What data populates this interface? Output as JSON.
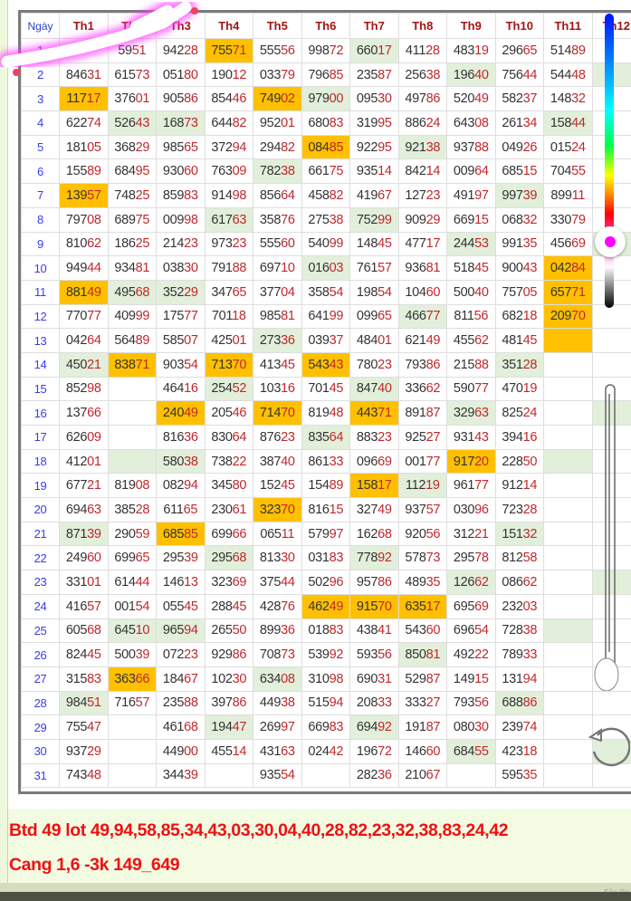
{
  "table": {
    "headers": [
      "Ngày",
      "Th1",
      "Th2",
      "Th3",
      "Th4",
      "Th5",
      "Th6",
      "Th7",
      "Th8",
      "Th9",
      "Th10",
      "Th11",
      "Th12"
    ],
    "highlight_colors": {
      "o": "#ffc000",
      "g": "#e2efda"
    },
    "rows": [
      {
        "day": "1",
        "cells": [
          "",
          "5951",
          "94228",
          "75571",
          "55556",
          "99872",
          "66017",
          "41128",
          "48319",
          "29665",
          "51489",
          ""
        ],
        "hl": "...o..g....."
      },
      {
        "day": "2",
        "cells": [
          "84631",
          "61573",
          "05180",
          "19012",
          "03379",
          "79685",
          "23587",
          "25638",
          "19640",
          "75644",
          "54448",
          ""
        ],
        "hl": "........g..g"
      },
      {
        "day": "3",
        "cells": [
          "11717",
          "37601",
          "90586",
          "85446",
          "74902",
          "97900",
          "09530",
          "49786",
          "52049",
          "58237",
          "14832",
          ""
        ],
        "hl": "o...og......"
      },
      {
        "day": "4",
        "cells": [
          "62274",
          "52643",
          "16873",
          "64482",
          "95201",
          "68083",
          "31995",
          "88624",
          "64308",
          "26134",
          "15844",
          ""
        ],
        "hl": ".gg.......g."
      },
      {
        "day": "5",
        "cells": [
          "18105",
          "36829",
          "98565",
          "37294",
          "29482",
          "08485",
          "92295",
          "92138",
          "93788",
          "04926",
          "01524",
          ""
        ],
        "hl": ".....o.g...."
      },
      {
        "day": "6",
        "cells": [
          "15589",
          "68495",
          "93060",
          "76309",
          "78238",
          "66175",
          "93514",
          "84214",
          "00964",
          "68515",
          "70455",
          ""
        ],
        "hl": "....g......."
      },
      {
        "day": "7",
        "cells": [
          "13957",
          "74825",
          "85983",
          "91498",
          "85664",
          "45882",
          "41967",
          "12723",
          "49197",
          "99739",
          "89911",
          ""
        ],
        "hl": "o........g.."
      },
      {
        "day": "8",
        "cells": [
          "79708",
          "68975",
          "00998",
          "61763",
          "35876",
          "27538",
          "75299",
          "90929",
          "66915",
          "06832",
          "33079",
          ""
        ],
        "hl": "...g..g....."
      },
      {
        "day": "9",
        "cells": [
          "81062",
          "18625",
          "21423",
          "97323",
          "55560",
          "54099",
          "14845",
          "47717",
          "24453",
          "99135",
          "45669",
          ""
        ],
        "hl": "........g..g"
      },
      {
        "day": "10",
        "cells": [
          "94944",
          "93481",
          "03830",
          "79188",
          "69710",
          "01603",
          "76157",
          "93681",
          "51845",
          "90043",
          "04284",
          ""
        ],
        "hl": ".....g....o."
      },
      {
        "day": "11",
        "cells": [
          "88149",
          "49568",
          "35229",
          "34765",
          "37704",
          "35854",
          "19854",
          "10460",
          "50040",
          "75705",
          "65771",
          ""
        ],
        "hl": "ogg.......o."
      },
      {
        "day": "12",
        "cells": [
          "77077",
          "40999",
          "17577",
          "70118",
          "98581",
          "64199",
          "09965",
          "46677",
          "81156",
          "68218",
          "20970",
          ""
        ],
        "hl": ".......g..o."
      },
      {
        "day": "13",
        "cells": [
          "04264",
          "56489",
          "58507",
          "42501",
          "27336",
          "03937",
          "48401",
          "62149",
          "45562",
          "48145",
          "",
          ""
        ],
        "hl": "....g.....o."
      },
      {
        "day": "14",
        "cells": [
          "45021",
          "83871",
          "90354",
          "71370",
          "41345",
          "54343",
          "78023",
          "79386",
          "21588",
          "35128",
          "",
          ""
        ],
        "hl": "go.o.o...g.."
      },
      {
        "day": "15",
        "cells": [
          "85298",
          "",
          "46416",
          "25452",
          "10316",
          "70145",
          "84740",
          "33662",
          "59077",
          "47019",
          "",
          ""
        ],
        "hl": "...g..g....."
      },
      {
        "day": "16",
        "cells": [
          "13766",
          "",
          "24049",
          "20546",
          "71470",
          "81948",
          "44371",
          "89187",
          "32963",
          "82524",
          "",
          ""
        ],
        "hl": "..o.o.o.g..g"
      },
      {
        "day": "17",
        "cells": [
          "62609",
          "",
          "81636",
          "83064",
          "87623",
          "83564",
          "88323",
          "92527",
          "93143",
          "39416",
          "",
          ""
        ],
        "hl": ".....g......"
      },
      {
        "day": "18",
        "cells": [
          "41201",
          "",
          "58038",
          "73822",
          "38740",
          "86133",
          "09669",
          "00177",
          "91720",
          "22850",
          "",
          ""
        ],
        "hl": ".gg.....o.g."
      },
      {
        "day": "19",
        "cells": [
          "67721",
          "81908",
          "08294",
          "34580",
          "15245",
          "15489",
          "15817",
          "11219",
          "96177",
          "91214",
          "",
          ""
        ],
        "hl": "......og...."
      },
      {
        "day": "20",
        "cells": [
          "69463",
          "38528",
          "61165",
          "23061",
          "32370",
          "81615",
          "32749",
          "93757",
          "03096",
          "72328",
          "",
          ""
        ],
        "hl": "....o......."
      },
      {
        "day": "21",
        "cells": [
          "87139",
          "29059",
          "68585",
          "69966",
          "06511",
          "57997",
          "16268",
          "92056",
          "31221",
          "15132",
          "",
          ""
        ],
        "hl": "g.o......g.."
      },
      {
        "day": "22",
        "cells": [
          "24960",
          "69965",
          "29539",
          "29568",
          "81330",
          "03183",
          "77892",
          "57873",
          "29578",
          "81258",
          "",
          ""
        ],
        "hl": "...g..g....."
      },
      {
        "day": "23",
        "cells": [
          "33101",
          "61444",
          "14613",
          "32369",
          "37544",
          "50296",
          "95786",
          "48935",
          "12662",
          "08662",
          "",
          ""
        ],
        "hl": "........g..g"
      },
      {
        "day": "24",
        "cells": [
          "41657",
          "00154",
          "05545",
          "28845",
          "42876",
          "46249",
          "91570",
          "63517",
          "69569",
          "23203",
          "",
          ""
        ],
        "hl": ".....ooo...."
      },
      {
        "day": "25",
        "cells": [
          "60568",
          "64510",
          "96594",
          "26550",
          "89936",
          "01883",
          "43841",
          "54360",
          "69654",
          "72838",
          "",
          ""
        ],
        "hl": ".gg.......g."
      },
      {
        "day": "26",
        "cells": [
          "82445",
          "50039",
          "07223",
          "92986",
          "70873",
          "53992",
          "59356",
          "85081",
          "49222",
          "78933",
          "",
          ""
        ],
        "hl": ".......g...."
      },
      {
        "day": "27",
        "cells": [
          "31583",
          "36366",
          "18467",
          "10230",
          "63408",
          "31098",
          "69031",
          "52987",
          "14915",
          "13194",
          "",
          ""
        ],
        "hl": ".o..g......."
      },
      {
        "day": "28",
        "cells": [
          "98451",
          "71657",
          "23588",
          "39786",
          "44938",
          "51594",
          "20833",
          "33327",
          "79356",
          "68886",
          "",
          ""
        ],
        "hl": "g........g.."
      },
      {
        "day": "29",
        "cells": [
          "75547",
          "",
          "46168",
          "19447",
          "26997",
          "66983",
          "69492",
          "19187",
          "08030",
          "23974",
          "",
          ""
        ],
        "hl": "...g..g....."
      },
      {
        "day": "30",
        "cells": [
          "93729",
          "",
          "44900",
          "45514",
          "43163",
          "02442",
          "19672",
          "14660",
          "68455",
          "42318",
          "",
          ""
        ],
        "hl": "........g..g"
      },
      {
        "day": "31",
        "cells": [
          "74348",
          "",
          "34439",
          "",
          "93554",
          "",
          "28236",
          "21067",
          "",
          "59535",
          "",
          ""
        ],
        "hl": "............"
      }
    ]
  },
  "notes": {
    "line1": "Btd 49 lot 49,94,58,85,34,43,03,30,04,40,28,82,23,32,38,83,24,42",
    "line2": "Cang 1,6 -3k 149_649",
    "color": "#f01010"
  },
  "footer": {
    "edit_hint": "Sửa lần"
  },
  "overlay": {
    "color_slider_level": 0.78,
    "selected_color": "#ff00ff",
    "icons": [
      "color-slider",
      "size-slider",
      "rotate-icon"
    ]
  }
}
